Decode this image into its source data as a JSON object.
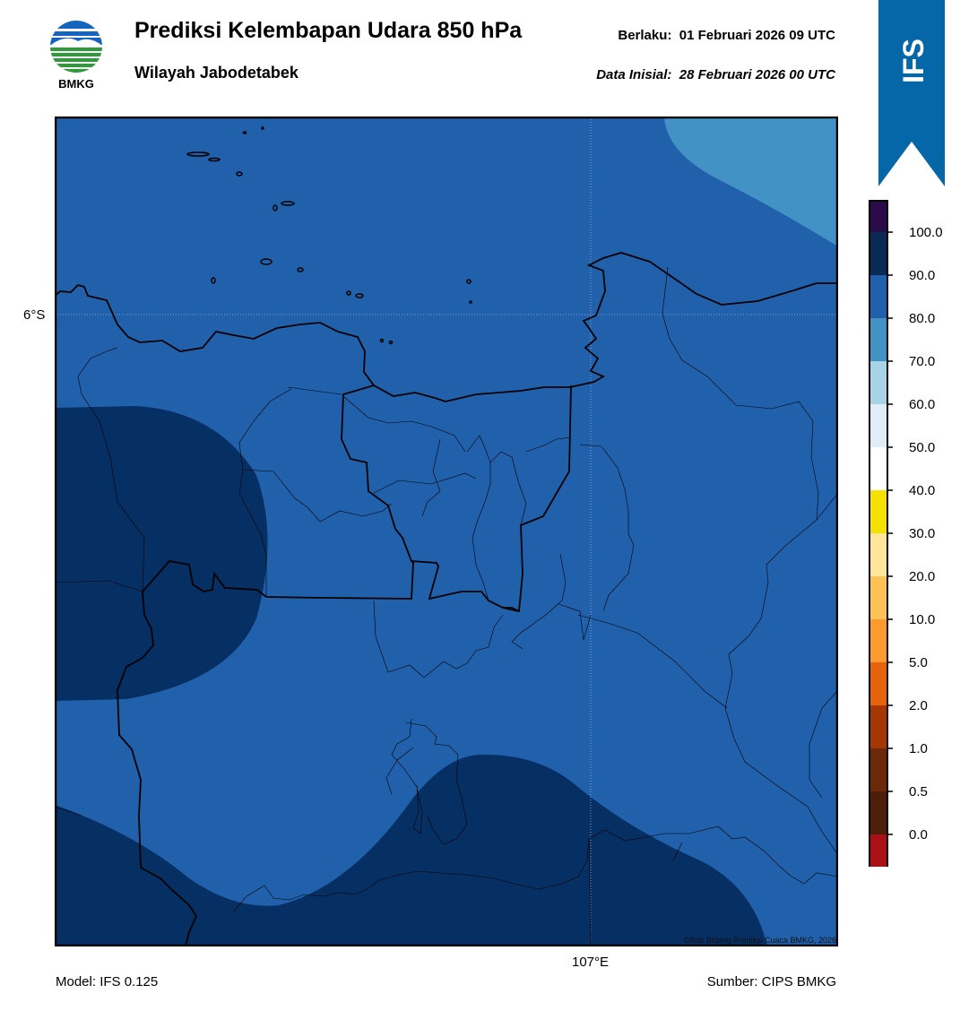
{
  "header": {
    "title": "Prediksi Kelembapan Udara 850 hPa",
    "subtitle": "Wilayah Jabodetabek",
    "valid_label": "Berlaku:",
    "valid_value": "01 Februari 2026 09 UTC",
    "init_label": "Data Inisial:",
    "init_value": "28 Februari 2026 00 UTC"
  },
  "logo": {
    "text": "BMKG",
    "icon": "bmkg-logo-icon"
  },
  "banner": {
    "text": "IFS",
    "color": "#0567a8"
  },
  "map": {
    "lat_label": "6°S",
    "lon_label": "107°E",
    "copyright": "©Sub Bidang Prediksi Cuaca BMKG, 2026",
    "colors": {
      "level_80_90": "#2161ac",
      "level_90_100": "#062f63",
      "level_70_80": "#4292c6"
    }
  },
  "footer": {
    "model": "Model: IFS 0.125",
    "source": "Sumber: CIPS BMKG"
  },
  "colorbar": {
    "ticks": [
      "100.0",
      "90.0",
      "80.0",
      "70.0",
      "60.0",
      "50.0",
      "40.0",
      "30.0",
      "20.0",
      "10.0",
      "5.0",
      "2.0",
      "1.0",
      "0.5",
      "0.0"
    ],
    "bins": [
      "#2c0b4a",
      "#082a55",
      "#2060ac",
      "#4292c5",
      "#a8d3e7",
      "#e0ecf6",
      "#ffffff",
      "#f5e000",
      "#fde59a",
      "#fec157",
      "#fd9a2e",
      "#e7620d",
      "#a63604",
      "#6b2908",
      "#4d1f0a",
      "#ac1016",
      "#e8382c"
    ]
  }
}
